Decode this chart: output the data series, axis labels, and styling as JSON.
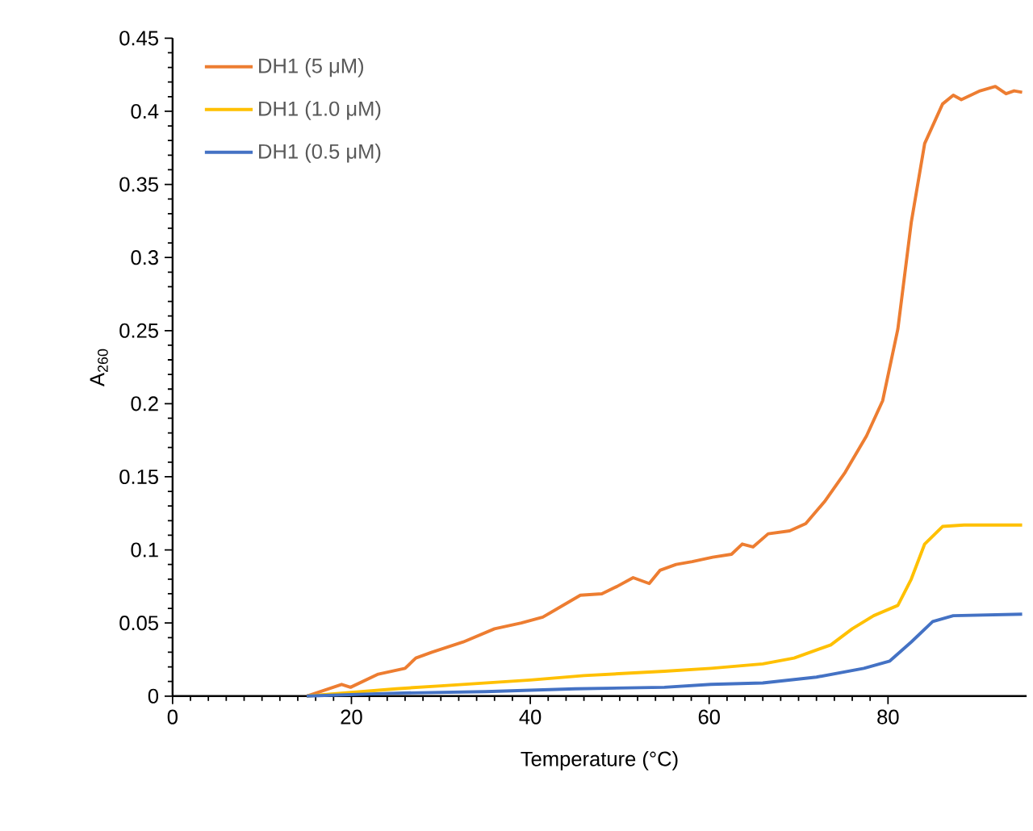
{
  "chart_data": {
    "type": "line",
    "xlabel": "Temperature (°C)",
    "ylabel": "A$_{260}$",
    "xlim": [
      0,
      95.5
    ],
    "ylim": [
      0,
      0.45
    ],
    "xticks": [
      0,
      20,
      40,
      60,
      80
    ],
    "yticks": [
      0,
      0.05,
      0.1,
      0.15,
      0.2,
      0.25,
      0.3,
      0.35,
      0.4,
      0.45
    ],
    "legend": "top left",
    "grid": false,
    "marker": "none",
    "line_style": "solid",
    "series": [
      {
        "name": "DH1 (5 μM)",
        "color": "#ed7d31",
        "x": [
          15,
          18.9,
          19.9,
          23,
          26,
          27.2,
          29,
          32.5,
          36,
          39,
          41.4,
          45.6,
          48,
          49.7,
          51.5,
          53.3,
          54.5,
          56.3,
          58.1,
          60.4,
          62.5,
          63.7,
          64.9,
          66.6,
          69,
          70.8,
          72.9,
          75.2,
          77.6,
          79.4,
          81.1,
          82.6,
          84.1,
          86.1,
          87.3,
          88.2,
          90.3,
          92,
          93.2,
          94.1,
          95
        ],
        "values": [
          0,
          0.008,
          0.006,
          0.015,
          0.019,
          0.026,
          0.03,
          0.037,
          0.046,
          0.05,
          0.054,
          0.069,
          0.07,
          0.075,
          0.081,
          0.077,
          0.086,
          0.09,
          0.092,
          0.095,
          0.097,
          0.104,
          0.102,
          0.111,
          0.113,
          0.118,
          0.133,
          0.153,
          0.178,
          0.202,
          0.251,
          0.324,
          0.378,
          0.405,
          0.411,
          0.408,
          0.414,
          0.417,
          0.412,
          0.414,
          0.413
        ]
      },
      {
        "name": "DH1 (1.0 μM)",
        "color": "#ffc000",
        "x": [
          15,
          25,
          30,
          40,
          46,
          55,
          60.2,
          66,
          69.5,
          73.6,
          76,
          78.4,
          81.1,
          82.6,
          84.1,
          86.1,
          88.5,
          95
        ],
        "values": [
          0,
          0.005,
          0.007,
          0.011,
          0.014,
          0.017,
          0.019,
          0.022,
          0.026,
          0.035,
          0.046,
          0.055,
          0.062,
          0.08,
          0.104,
          0.116,
          0.117,
          0.117
        ]
      },
      {
        "name": "DH1 (0.5 μM)",
        "color": "#4472c4",
        "x": [
          15,
          25,
          35,
          45,
          55,
          60.2,
          66,
          72,
          77.3,
          80.2,
          82.6,
          85,
          87.3,
          95
        ],
        "values": [
          0,
          0.002,
          0.003,
          0.005,
          0.006,
          0.008,
          0.009,
          0.013,
          0.019,
          0.024,
          0.037,
          0.051,
          0.055,
          0.056
        ]
      }
    ]
  }
}
